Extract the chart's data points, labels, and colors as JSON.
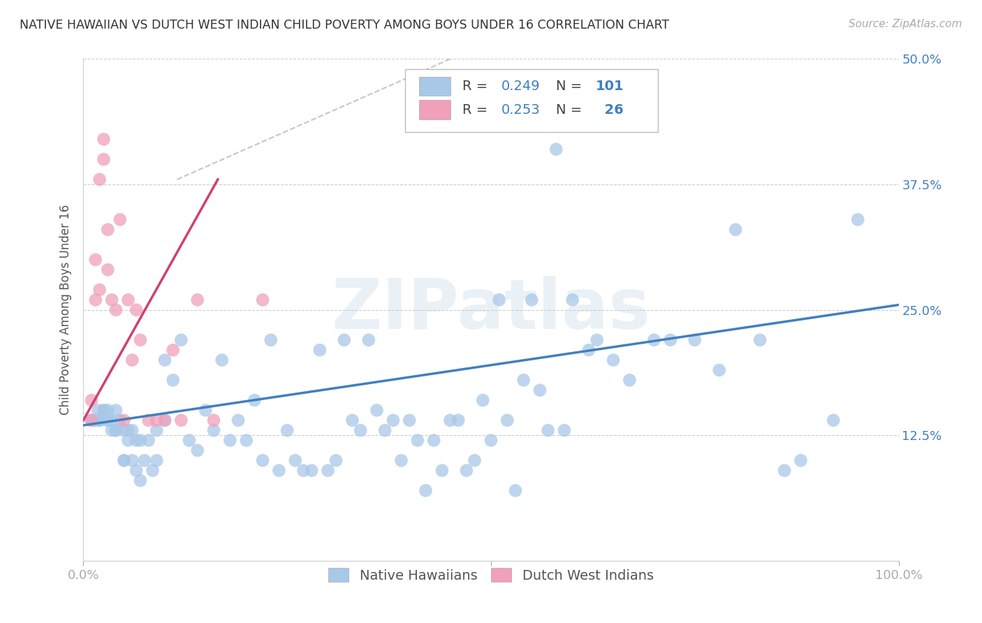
{
  "title": "NATIVE HAWAIIAN VS DUTCH WEST INDIAN CHILD POVERTY AMONG BOYS UNDER 16 CORRELATION CHART",
  "source": "Source: ZipAtlas.com",
  "ylabel": "Child Poverty Among Boys Under 16",
  "xlim": [
    0,
    1.0
  ],
  "ylim": [
    0,
    0.5
  ],
  "xtick_positions": [
    0.0,
    0.1,
    0.2,
    0.3,
    0.4,
    0.5,
    0.6,
    0.7,
    0.8,
    0.9,
    1.0
  ],
  "xticklabels": [
    "0.0%",
    "",
    "",
    "",
    "",
    "",
    "",
    "",
    "",
    "",
    "100.0%"
  ],
  "yticks": [
    0.0,
    0.125,
    0.25,
    0.375,
    0.5
  ],
  "yticklabels": [
    "",
    "12.5%",
    "25.0%",
    "37.5%",
    "50.0%"
  ],
  "blue_color": "#A8C8E8",
  "pink_color": "#F0A0B8",
  "blue_line_color": "#4080C0",
  "pink_line_color": "#D04070",
  "dashed_color": "#C0C0C0",
  "legend_r_blue": "0.249",
  "legend_n_blue": "101",
  "legend_r_pink": "0.253",
  "legend_n_pink": "26",
  "watermark": "ZIPatlas",
  "blue_line_x0": 0.0,
  "blue_line_y0": 0.135,
  "blue_line_x1": 1.0,
  "blue_line_y1": 0.255,
  "pink_line_x0": 0.0,
  "pink_line_y0": 0.14,
  "pink_line_x1": 0.165,
  "pink_line_y1": 0.38,
  "dashed_line_x0": 0.115,
  "dashed_line_y0": 0.38,
  "dashed_line_x1": 0.45,
  "dashed_line_y1": 0.5,
  "blue_pts_x": [
    0.015,
    0.015,
    0.018,
    0.02,
    0.025,
    0.03,
    0.03,
    0.035,
    0.04,
    0.04,
    0.05,
    0.05,
    0.055,
    0.06,
    0.065,
    0.07,
    0.075,
    0.08,
    0.085,
    0.09,
    0.09,
    0.1,
    0.1,
    0.11,
    0.12,
    0.13,
    0.14,
    0.15,
    0.16,
    0.17,
    0.18,
    0.19,
    0.2,
    0.21,
    0.22,
    0.23,
    0.24,
    0.25,
    0.26,
    0.27,
    0.28,
    0.29,
    0.3,
    0.31,
    0.32,
    0.33,
    0.34,
    0.35,
    0.36,
    0.37,
    0.38,
    0.39,
    0.4,
    0.41,
    0.42,
    0.43,
    0.44,
    0.45,
    0.46,
    0.47,
    0.48,
    0.49,
    0.5,
    0.51,
    0.52,
    0.53,
    0.54,
    0.55,
    0.56,
    0.57,
    0.58,
    0.59,
    0.6,
    0.62,
    0.63,
    0.65,
    0.67,
    0.7,
    0.72,
    0.75,
    0.78,
    0.8,
    0.83,
    0.86,
    0.88,
    0.92,
    0.95,
    0.01,
    0.01,
    0.02,
    0.02,
    0.025,
    0.03,
    0.035,
    0.04,
    0.045,
    0.05,
    0.055,
    0.06,
    0.065,
    0.07
  ],
  "blue_pts_y": [
    0.14,
    0.14,
    0.15,
    0.14,
    0.15,
    0.14,
    0.15,
    0.14,
    0.15,
    0.13,
    0.1,
    0.1,
    0.13,
    0.1,
    0.09,
    0.08,
    0.1,
    0.12,
    0.09,
    0.1,
    0.13,
    0.14,
    0.2,
    0.18,
    0.22,
    0.12,
    0.11,
    0.15,
    0.13,
    0.2,
    0.12,
    0.14,
    0.12,
    0.16,
    0.1,
    0.22,
    0.09,
    0.13,
    0.1,
    0.09,
    0.09,
    0.21,
    0.09,
    0.1,
    0.22,
    0.14,
    0.13,
    0.22,
    0.15,
    0.13,
    0.14,
    0.1,
    0.14,
    0.12,
    0.07,
    0.12,
    0.09,
    0.14,
    0.14,
    0.09,
    0.1,
    0.16,
    0.12,
    0.26,
    0.14,
    0.07,
    0.18,
    0.26,
    0.17,
    0.13,
    0.41,
    0.13,
    0.26,
    0.21,
    0.22,
    0.2,
    0.18,
    0.22,
    0.22,
    0.22,
    0.19,
    0.33,
    0.22,
    0.09,
    0.1,
    0.14,
    0.34,
    0.14,
    0.14,
    0.14,
    0.14,
    0.15,
    0.14,
    0.13,
    0.13,
    0.14,
    0.13,
    0.12,
    0.13,
    0.12,
    0.12
  ],
  "pink_pts_x": [
    0.01,
    0.01,
    0.015,
    0.015,
    0.02,
    0.02,
    0.025,
    0.025,
    0.03,
    0.03,
    0.035,
    0.04,
    0.045,
    0.05,
    0.055,
    0.06,
    0.065,
    0.07,
    0.08,
    0.09,
    0.1,
    0.11,
    0.12,
    0.14,
    0.16,
    0.22
  ],
  "pink_pts_y": [
    0.14,
    0.16,
    0.3,
    0.26,
    0.38,
    0.27,
    0.42,
    0.4,
    0.33,
    0.29,
    0.26,
    0.25,
    0.34,
    0.14,
    0.26,
    0.2,
    0.25,
    0.22,
    0.14,
    0.14,
    0.14,
    0.21,
    0.14,
    0.26,
    0.14,
    0.26
  ]
}
